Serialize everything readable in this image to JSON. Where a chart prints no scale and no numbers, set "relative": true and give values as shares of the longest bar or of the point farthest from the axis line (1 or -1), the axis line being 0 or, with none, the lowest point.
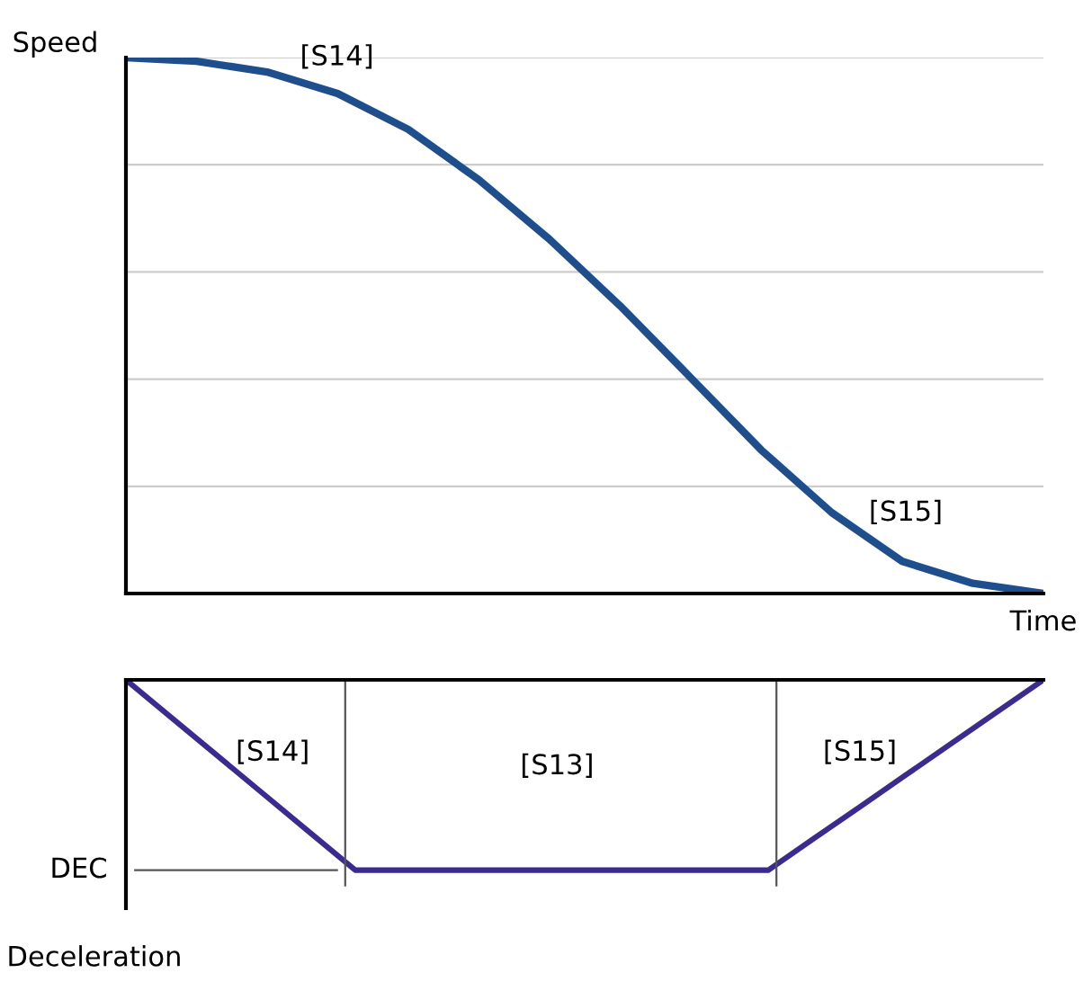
{
  "chart_data": [
    {
      "type": "line",
      "relative": true,
      "xlabel": "Time",
      "ylabel": "Speed",
      "grid": "y",
      "marker": "none",
      "line_style": "solid",
      "categories": [
        null,
        null,
        null,
        null,
        null,
        null,
        null,
        null,
        null,
        null,
        null,
        null,
        null,
        null
      ],
      "series": [
        {
          "color": "#1f4e8c",
          "values": [
            1.0,
            0.993,
            0.973,
            0.933,
            0.866,
            0.772,
            0.661,
            0.537,
            0.403,
            0.268,
            0.151,
            0.06,
            0.019,
            0
          ]
        }
      ],
      "annotations": [
        "[S14]",
        "[S15]"
      ]
    },
    {
      "type": "line",
      "relative": true,
      "ylabel": "Deceleration",
      "marker": "none",
      "line_style": "solid",
      "categories": [
        null,
        null,
        null,
        null,
        null,
        null,
        null,
        null,
        null,
        null,
        null,
        null,
        null,
        null,
        null,
        null,
        null,
        null,
        null,
        null,
        null
      ],
      "series": [
        {
          "color": "#3b2a8f",
          "values": [
            0,
            -0.2,
            -0.4,
            -0.6,
            -0.8,
            -1,
            -1,
            -1,
            -1,
            -1,
            -1,
            -1,
            -1,
            -1,
            -1,
            -0.833,
            -0.667,
            -0.5,
            -0.333,
            -0.167,
            0
          ]
        }
      ],
      "ref_lines": [
        {
          "axis": "y",
          "value": -1,
          "label": "DEC",
          "color": "#555555"
        }
      ],
      "annotations": [
        "[S14]",
        "[S13]",
        "[S15]"
      ]
    }
  ]
}
